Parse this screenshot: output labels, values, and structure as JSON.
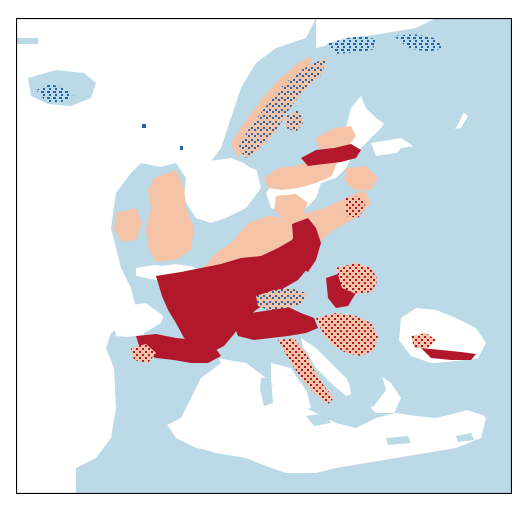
{
  "map": {
    "colors": {
      "land": "#bcd9e8",
      "water": "#ffffff",
      "frame": "#000000",
      "class_dark_red": "#b2182b",
      "class_light_red": "#f5c3a8",
      "class_blue": "#2166ac"
    },
    "legend": [],
    "title": ""
  }
}
